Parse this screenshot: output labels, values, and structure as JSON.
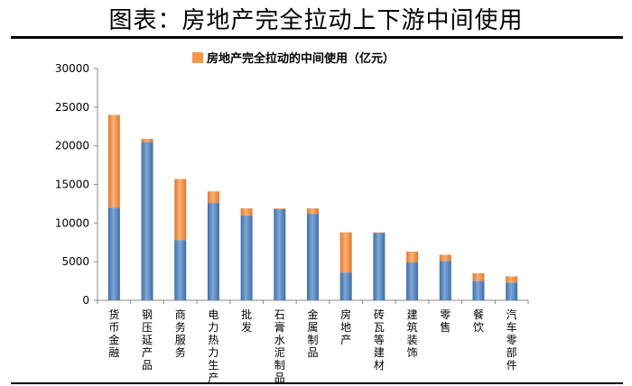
{
  "page": {
    "title": "图表：房地产完全拉动上下游中间使用"
  },
  "chart_data": {
    "type": "bar",
    "stacked": true,
    "title": "",
    "xlabel": "",
    "ylabel": "",
    "ylim": [
      0,
      30000
    ],
    "yticks": [
      0,
      5000,
      10000,
      15000,
      20000,
      25000,
      30000
    ],
    "legend_position": "top-right",
    "grid": false,
    "categories": [
      "货币金融",
      "钢压延产品",
      "商务服务",
      "电力热力生产",
      "批发",
      "石膏水泥制品",
      "金属制品",
      "房地产",
      "砖瓦等建材",
      "建筑装饰",
      "零售",
      "餐饮",
      "汽车零部件"
    ],
    "series": [
      {
        "name": "",
        "color": "#4f81bd",
        "values": [
          12000,
          20500,
          7800,
          12600,
          11000,
          11800,
          11200,
          3600,
          8700,
          4900,
          5100,
          2500,
          2300
        ]
      },
      {
        "name": "房地产完全拉动的中间使用（亿元）",
        "color": "#f79646",
        "values": [
          12000,
          400,
          7900,
          1500,
          900,
          100,
          700,
          5200,
          100,
          1400,
          800,
          1000,
          800
        ]
      }
    ]
  }
}
